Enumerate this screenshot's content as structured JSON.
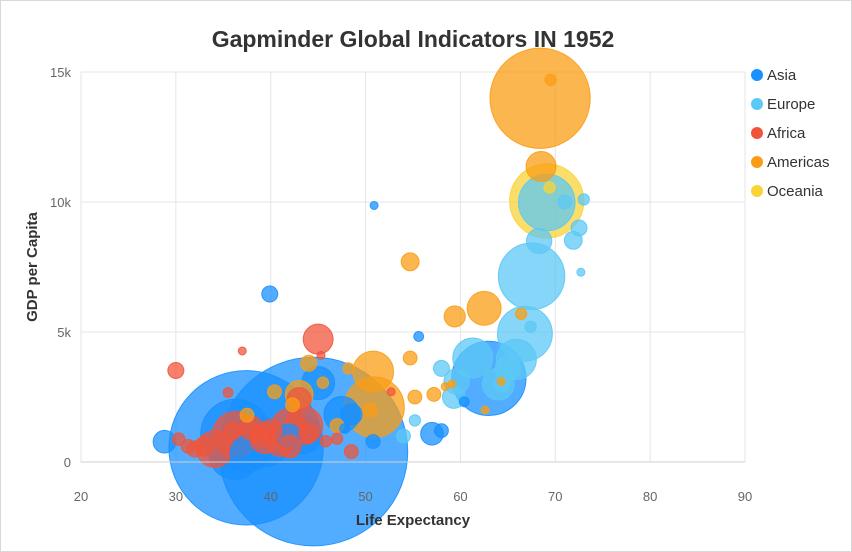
{
  "chart_data": {
    "type": "scatter",
    "title": "Gapminder Global Indicators IN 1952",
    "xlabel": "Life Expectancy",
    "ylabel": "GDP per Capita",
    "xlim": [
      20,
      90
    ],
    "ylim": [
      0,
      15000
    ],
    "x_ticks": [
      20,
      30,
      40,
      50,
      60,
      70,
      80,
      90
    ],
    "y_ticks": [
      {
        "value": 0,
        "label": "0"
      },
      {
        "value": 5000,
        "label": "5k"
      },
      {
        "value": 10000,
        "label": "10k"
      },
      {
        "value": 15000,
        "label": "15k"
      }
    ],
    "grid": true,
    "legend_position": "right",
    "bubble_size_encodes": "population",
    "series": [
      {
        "name": "Asia",
        "color": "#1890ff",
        "points": [
          {
            "x": 44.5,
            "y": 400,
            "size": 556
          },
          {
            "x": 37.4,
            "y": 546,
            "size": 372
          },
          {
            "x": 28.8,
            "y": 779,
            "size": 8
          },
          {
            "x": 37.5,
            "y": 684,
            "size": 46
          },
          {
            "x": 36.3,
            "y": 1072,
            "size": 76
          },
          {
            "x": 37.6,
            "y": 331,
            "size": 20
          },
          {
            "x": 39.4,
            "y": 750,
            "size": 36
          },
          {
            "x": 47.5,
            "y": 1831,
            "size": 20
          },
          {
            "x": 63.0,
            "y": 3217,
            "size": 86
          },
          {
            "x": 43.4,
            "y": 1040,
            "size": 22
          },
          {
            "x": 45.0,
            "y": 3036,
            "size": 17
          },
          {
            "x": 50.9,
            "y": 9867,
            "size": 1
          },
          {
            "x": 39.9,
            "y": 6460,
            "size": 4
          },
          {
            "x": 55.6,
            "y": 4830,
            "size": 1.5
          },
          {
            "x": 57.0,
            "y": 1088,
            "size": 8
          },
          {
            "x": 48.5,
            "y": 1831,
            "size": 7
          },
          {
            "x": 50.8,
            "y": 787,
            "size": 3
          },
          {
            "x": 58.0,
            "y": 1206,
            "size": 3
          },
          {
            "x": 60.4,
            "y": 2315,
            "size": 1.5
          },
          {
            "x": 36.2,
            "y": 331,
            "size": 42
          },
          {
            "x": 47.8,
            "y": 1287,
            "size": 1.5
          },
          {
            "x": 41.9,
            "y": 1000,
            "size": 9
          }
        ]
      },
      {
        "name": "Europe",
        "color": "#5cc8f5",
        "points": [
          {
            "x": 67.5,
            "y": 7144,
            "size": 69
          },
          {
            "x": 69.1,
            "y": 9980,
            "size": 50
          },
          {
            "x": 66.8,
            "y": 4931,
            "size": 47
          },
          {
            "x": 65.9,
            "y": 3945,
            "size": 25
          },
          {
            "x": 64.0,
            "y": 3000,
            "size": 16
          },
          {
            "x": 61.3,
            "y": 4000,
            "size": 25
          },
          {
            "x": 68.3,
            "y": 8500,
            "size": 10
          },
          {
            "x": 59.6,
            "y": 3100,
            "size": 10
          },
          {
            "x": 65.0,
            "y": 3600,
            "size": 10
          },
          {
            "x": 72.5,
            "y": 9000,
            "size": 4
          },
          {
            "x": 71.9,
            "y": 8527,
            "size": 5
          },
          {
            "x": 58.0,
            "y": 3600,
            "size": 4
          },
          {
            "x": 67.4,
            "y": 5200,
            "size": 2
          },
          {
            "x": 59.3,
            "y": 2500,
            "size": 8
          },
          {
            "x": 54.0,
            "y": 1000,
            "size": 3
          },
          {
            "x": 55.2,
            "y": 1600,
            "size": 2
          },
          {
            "x": 72.7,
            "y": 7300,
            "size": 1
          },
          {
            "x": 64.4,
            "y": 3000,
            "size": 4
          },
          {
            "x": 71.0,
            "y": 10000,
            "size": 3
          },
          {
            "x": 73.0,
            "y": 10100,
            "size": 2
          }
        ]
      },
      {
        "name": "Africa",
        "color": "#f0553c",
        "points": [
          {
            "x": 36.3,
            "y": 1060,
            "size": 33
          },
          {
            "x": 34.1,
            "y": 500,
            "size": 21
          },
          {
            "x": 43.5,
            "y": 1400,
            "size": 22
          },
          {
            "x": 41.9,
            "y": 1400,
            "size": 18
          },
          {
            "x": 39.4,
            "y": 900,
            "size": 14
          },
          {
            "x": 45.0,
            "y": 4725,
            "size": 14
          },
          {
            "x": 43.0,
            "y": 2400,
            "size": 9
          },
          {
            "x": 30.0,
            "y": 3520,
            "size": 4
          },
          {
            "x": 41.0,
            "y": 750,
            "size": 12
          },
          {
            "x": 38.0,
            "y": 1300,
            "size": 9
          },
          {
            "x": 40.0,
            "y": 1200,
            "size": 8
          },
          {
            "x": 37.0,
            "y": 4270,
            "size": 1
          },
          {
            "x": 35.5,
            "y": 2670,
            "size": 1.5
          },
          {
            "x": 45.3,
            "y": 4100,
            "size": 1
          },
          {
            "x": 33.0,
            "y": 600,
            "size": 6
          },
          {
            "x": 32.0,
            "y": 500,
            "size": 4
          },
          {
            "x": 30.3,
            "y": 879,
            "size": 2.5
          },
          {
            "x": 31.3,
            "y": 600,
            "size": 3
          },
          {
            "x": 42.0,
            "y": 600,
            "size": 8
          },
          {
            "x": 39.0,
            "y": 1000,
            "size": 7
          },
          {
            "x": 48.5,
            "y": 400,
            "size": 3
          },
          {
            "x": 47.0,
            "y": 900,
            "size": 2
          },
          {
            "x": 45.8,
            "y": 800,
            "size": 2
          },
          {
            "x": 52.7,
            "y": 2700,
            "size": 1
          },
          {
            "x": 44.0,
            "y": 1100,
            "size": 6
          },
          {
            "x": 36.0,
            "y": 1200,
            "size": 5
          }
        ]
      },
      {
        "name": "Americas",
        "color": "#fa9d14",
        "points": [
          {
            "x": 68.4,
            "y": 13990,
            "size": 157
          },
          {
            "x": 50.9,
            "y": 2109,
            "size": 57
          },
          {
            "x": 50.8,
            "y": 3478,
            "size": 26
          },
          {
            "x": 62.5,
            "y": 5911,
            "size": 18
          },
          {
            "x": 43.0,
            "y": 2600,
            "size": 12
          },
          {
            "x": 68.5,
            "y": 11367,
            "size": 14
          },
          {
            "x": 59.4,
            "y": 5600,
            "size": 7
          },
          {
            "x": 54.7,
            "y": 7700,
            "size": 5
          },
          {
            "x": 55.2,
            "y": 2500,
            "size": 3
          },
          {
            "x": 47.0,
            "y": 1400,
            "size": 3
          },
          {
            "x": 50.5,
            "y": 2000,
            "size": 3
          },
          {
            "x": 57.2,
            "y": 2600,
            "size": 3
          },
          {
            "x": 44.0,
            "y": 3800,
            "size": 4
          },
          {
            "x": 40.4,
            "y": 2700,
            "size": 3
          },
          {
            "x": 42.3,
            "y": 2200,
            "size": 3
          },
          {
            "x": 45.5,
            "y": 3050,
            "size": 2
          },
          {
            "x": 48.2,
            "y": 3600,
            "size": 2
          },
          {
            "x": 62.6,
            "y": 2000,
            "size": 1
          },
          {
            "x": 64.3,
            "y": 3100,
            "size": 1
          },
          {
            "x": 58.4,
            "y": 2900,
            "size": 1
          },
          {
            "x": 59.1,
            "y": 3000,
            "size": 1
          },
          {
            "x": 66.4,
            "y": 5700,
            "size": 2
          },
          {
            "x": 69.5,
            "y": 14700,
            "size": 2
          },
          {
            "x": 37.5,
            "y": 1800,
            "size": 3
          },
          {
            "x": 54.7,
            "y": 4000,
            "size": 3
          }
        ]
      },
      {
        "name": "Oceania",
        "color": "#fad337",
        "points": [
          {
            "x": 69.1,
            "y": 10040,
            "size": 86
          },
          {
            "x": 69.4,
            "y": 10556,
            "size": 2
          }
        ]
      }
    ]
  }
}
